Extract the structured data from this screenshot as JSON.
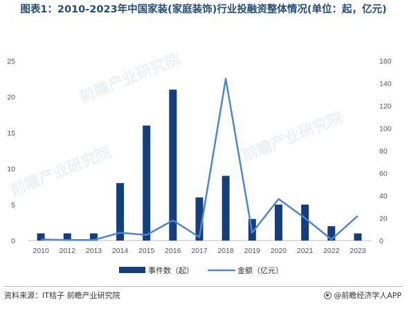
{
  "title": "图表1：2010-2023年中国家装(家庭装饰)行业投融资整体情况(单位：起，亿元)",
  "source": "资料来源：IT桔子 前瞻产业研究院",
  "brand": "@前瞻经济学人APP",
  "watermark": "前瞻产业研究院",
  "colors": {
    "bar": "#143f7e",
    "line": "#4a86d8",
    "title": "#1f4e79"
  },
  "chart_data": {
    "type": "bar+line",
    "categories": [
      "2010",
      "2012",
      "2013",
      "2014",
      "2015",
      "2016",
      "2017",
      "2018",
      "2019",
      "2020",
      "2021",
      "2022",
      "2023"
    ],
    "series": [
      {
        "name": "事件数（起）",
        "type": "bar",
        "axis": "left",
        "values": [
          1,
          1,
          1,
          8,
          16,
          21,
          6,
          9,
          3,
          5,
          5,
          2,
          1
        ]
      },
      {
        "name": "金额（亿元）",
        "type": "line",
        "axis": "right",
        "values": [
          1,
          0.5,
          0.5,
          7,
          5,
          18,
          3,
          144,
          7,
          37,
          20,
          1,
          22
        ]
      }
    ],
    "y_left": {
      "min": 0,
      "max": 25,
      "ticks": [
        0,
        5,
        10,
        15,
        20,
        25
      ]
    },
    "y_right": {
      "min": 0,
      "max": 160,
      "ticks": [
        0,
        20,
        40,
        60,
        80,
        100,
        120,
        140,
        160
      ]
    },
    "grid": false,
    "legend_position": "bottom"
  }
}
